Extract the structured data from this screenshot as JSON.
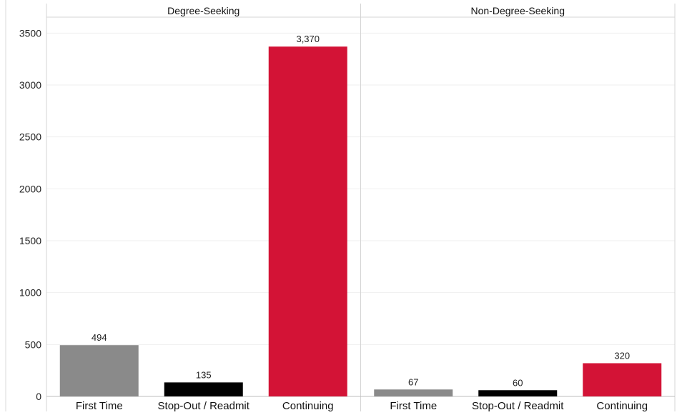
{
  "chart_data": {
    "type": "bar",
    "panels": [
      {
        "title": "Degree-Seeking",
        "categories": [
          "First Time",
          "Stop-Out / Readmit",
          "Continuing"
        ],
        "values": [
          494,
          135,
          3370
        ],
        "value_labels": [
          "494",
          "135",
          "3,370"
        ]
      },
      {
        "title": "Non-Degree-Seeking",
        "categories": [
          "First Time",
          "Stop-Out / Readmit",
          "Continuing"
        ],
        "values": [
          67,
          60,
          320
        ],
        "value_labels": [
          "67",
          "60",
          "320"
        ]
      }
    ],
    "category_colors": {
      "First Time": "#8a8a8a",
      "Stop-Out / Readmit": "#000000",
      "Continuing": "#d31336"
    },
    "y_ticks": [
      0,
      500,
      1000,
      1500,
      2000,
      2500,
      3000,
      3500
    ],
    "y_tick_labels": [
      "0",
      "500",
      "1000",
      "1500",
      "2000",
      "2500",
      "3000",
      "3500"
    ],
    "ylim": [
      0,
      3700
    ],
    "xlabel": "",
    "ylabel": "",
    "grid": true,
    "legend": "none"
  }
}
